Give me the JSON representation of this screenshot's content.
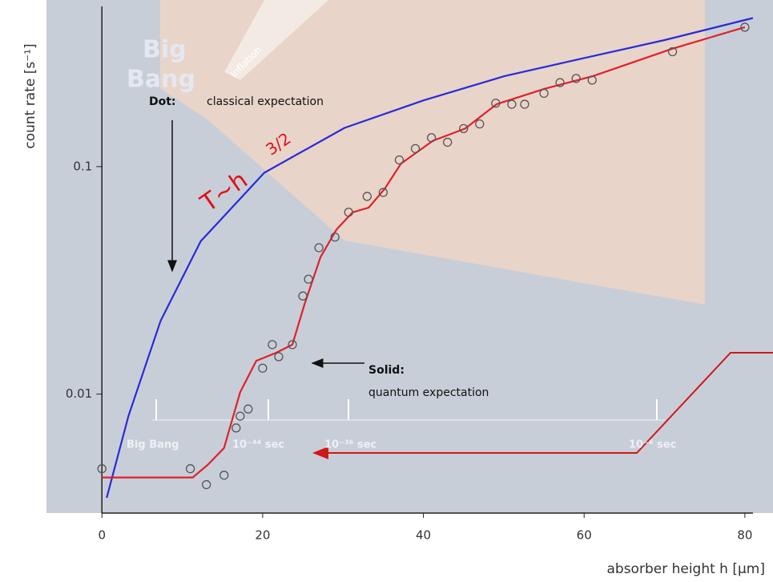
{
  "chart_data": {
    "type": "scatter",
    "y_label": "count rate [s⁻¹]",
    "x_label": "absorber height h [µm]",
    "xlim": [
      -6.9,
      83.5
    ],
    "xticks": [
      0,
      20,
      40,
      60,
      80
    ],
    "ylim": [
      0.003,
      0.54
    ],
    "yticks": [
      0.01,
      0.1
    ],
    "log_y": true,
    "annotations": [
      "Dot:",
      "classical expectation",
      "Solid:",
      "quantum expectation",
      "T~h",
      "3/2",
      "Big",
      "Bang",
      "Inflation",
      "Big Bang",
      "10⁻⁴⁴ sec",
      "10⁻³⁶ sec",
      "10⁻⁶ sec"
    ],
    "series": [
      {
        "style": "line",
        "color": "#2a2ad8",
        "x": [
          0.6,
          3.3,
          7.3,
          12.3,
          20.2,
          30.2,
          40.1,
          50.1,
          60,
          70,
          81
        ],
        "values": [
          0.0035,
          0.008,
          0.021,
          0.047,
          0.094,
          0.148,
          0.196,
          0.25,
          0.3,
          0.36,
          0.45
        ]
      },
      {
        "style": "line",
        "color": "#e0202a",
        "x": [
          0,
          11.3,
          13.2,
          15.2,
          17.2,
          19.2,
          21.7,
          23.7,
          25.2,
          27.2,
          29.2,
          31.2,
          33.2,
          35.2,
          37.2,
          41.2,
          45.2,
          49.1,
          55.1,
          61.1,
          71,
          80
        ],
        "values": [
          0.0043,
          0.0043,
          0.0049,
          0.0058,
          0.0102,
          0.014,
          0.0152,
          0.0165,
          0.0248,
          0.04,
          0.053,
          0.063,
          0.066,
          0.08,
          0.103,
          0.13,
          0.147,
          0.188,
          0.22,
          0.25,
          0.33,
          0.41
        ]
      },
      {
        "style": "points",
        "color": "#555555",
        "x": [
          0,
          11,
          13,
          15.2,
          16.7,
          17.2,
          18.2,
          20,
          21.2,
          22,
          23.7,
          25,
          25.7,
          27,
          29,
          30.7,
          33,
          35,
          37,
          39,
          41,
          43,
          45,
          47,
          49,
          51,
          52.6,
          55,
          57,
          59,
          61,
          71,
          80
        ],
        "values": [
          0.0047,
          0.0047,
          0.004,
          0.0044,
          0.0071,
          0.008,
          0.0086,
          0.013,
          0.0165,
          0.0146,
          0.0165,
          0.027,
          0.032,
          0.044,
          0.049,
          0.063,
          0.074,
          0.077,
          0.107,
          0.12,
          0.134,
          0.128,
          0.147,
          0.154,
          0.19,
          0.188,
          0.188,
          0.21,
          0.234,
          0.244,
          0.24,
          0.32,
          0.41
        ]
      }
    ]
  }
}
